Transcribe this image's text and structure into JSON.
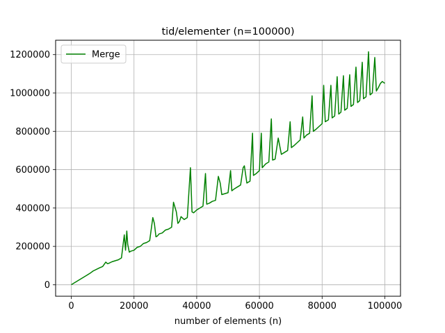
{
  "chart_data": {
    "type": "line",
    "title": "tid/elementer  (n=100000)",
    "xlabel": "number of elements (n)",
    "ylabel": "",
    "xlim": [
      -5000,
      105000
    ],
    "ylim": [
      -60000,
      1275000
    ],
    "x_ticks": [
      0,
      20000,
      40000,
      60000,
      80000,
      100000
    ],
    "x_tick_labels": [
      "0",
      "20000",
      "40000",
      "60000",
      "80000",
      "100000"
    ],
    "y_ticks": [
      0,
      200000,
      400000,
      600000,
      800000,
      1000000,
      1200000
    ],
    "y_tick_labels": [
      "0",
      "200000",
      "400000",
      "600000",
      "800000",
      "1000000",
      "1200000"
    ],
    "grid": true,
    "legend_position": "top-left",
    "series": [
      {
        "name": "Merge",
        "color": "#008000",
        "x": [
          0,
          1000,
          2000,
          3000,
          4000,
          5000,
          6000,
          7000,
          8000,
          9000,
          10000,
          11000,
          11500,
          12000,
          13000,
          14000,
          15000,
          16000,
          16900,
          17300,
          17700,
          18000,
          18500,
          19000,
          20000,
          21000,
          22000,
          23000,
          24000,
          25000,
          26000,
          26500,
          27000,
          27500,
          28000,
          29000,
          30000,
          31000,
          32000,
          32600,
          33500,
          34000,
          34500,
          35000,
          36000,
          37000,
          38000,
          38500,
          39000,
          40000,
          41000,
          42000,
          42800,
          43200,
          44000,
          45000,
          46000,
          46900,
          47500,
          48000,
          49000,
          50000,
          50800,
          51200,
          52000,
          53000,
          54000,
          54800,
          55200,
          56000,
          57000,
          57800,
          58100,
          59000,
          60000,
          60600,
          60900,
          62000,
          63000,
          63800,
          64200,
          65000,
          66000,
          67000,
          68000,
          69000,
          69800,
          70200,
          71000,
          72000,
          73000,
          73800,
          74200,
          75000,
          76000,
          76800,
          77200,
          78000,
          79000,
          80000,
          80500,
          81000,
          82000,
          82800,
          83200,
          84000,
          84800,
          85300,
          86000,
          86800,
          87200,
          88000,
          88800,
          89200,
          90000,
          90800,
          91300,
          92000,
          92800,
          93200,
          94000,
          94800,
          95300,
          96000,
          96800,
          97300,
          98000,
          98600,
          99200,
          100000
        ],
        "values": [
          0,
          10000,
          20000,
          30000,
          40000,
          50000,
          60000,
          72000,
          80000,
          88000,
          95000,
          118000,
          110000,
          112000,
          120000,
          125000,
          130000,
          140000,
          260000,
          180000,
          280000,
          210000,
          170000,
          175000,
          180000,
          195000,
          200000,
          215000,
          220000,
          230000,
          350000,
          320000,
          250000,
          255000,
          265000,
          270000,
          285000,
          290000,
          300000,
          430000,
          380000,
          320000,
          330000,
          355000,
          340000,
          350000,
          610000,
          380000,
          375000,
          390000,
          400000,
          410000,
          580000,
          420000,
          425000,
          435000,
          440000,
          565000,
          530000,
          470000,
          475000,
          480000,
          595000,
          490000,
          500000,
          510000,
          520000,
          610000,
          620000,
          530000,
          540000,
          790000,
          570000,
          580000,
          595000,
          790000,
          610000,
          630000,
          640000,
          865000,
          650000,
          655000,
          765000,
          680000,
          690000,
          700000,
          850000,
          715000,
          725000,
          740000,
          755000,
          875000,
          765000,
          780000,
          790000,
          985000,
          800000,
          810000,
          825000,
          840000,
          1040000,
          850000,
          860000,
          1040000,
          870000,
          880000,
          1085000,
          890000,
          900000,
          1090000,
          910000,
          920000,
          1095000,
          930000,
          940000,
          1135000,
          950000,
          960000,
          1160000,
          970000,
          980000,
          1215000,
          990000,
          1000000,
          1185000,
          1010000,
          1030000,
          1050000,
          1060000,
          1050000
        ]
      }
    ]
  }
}
